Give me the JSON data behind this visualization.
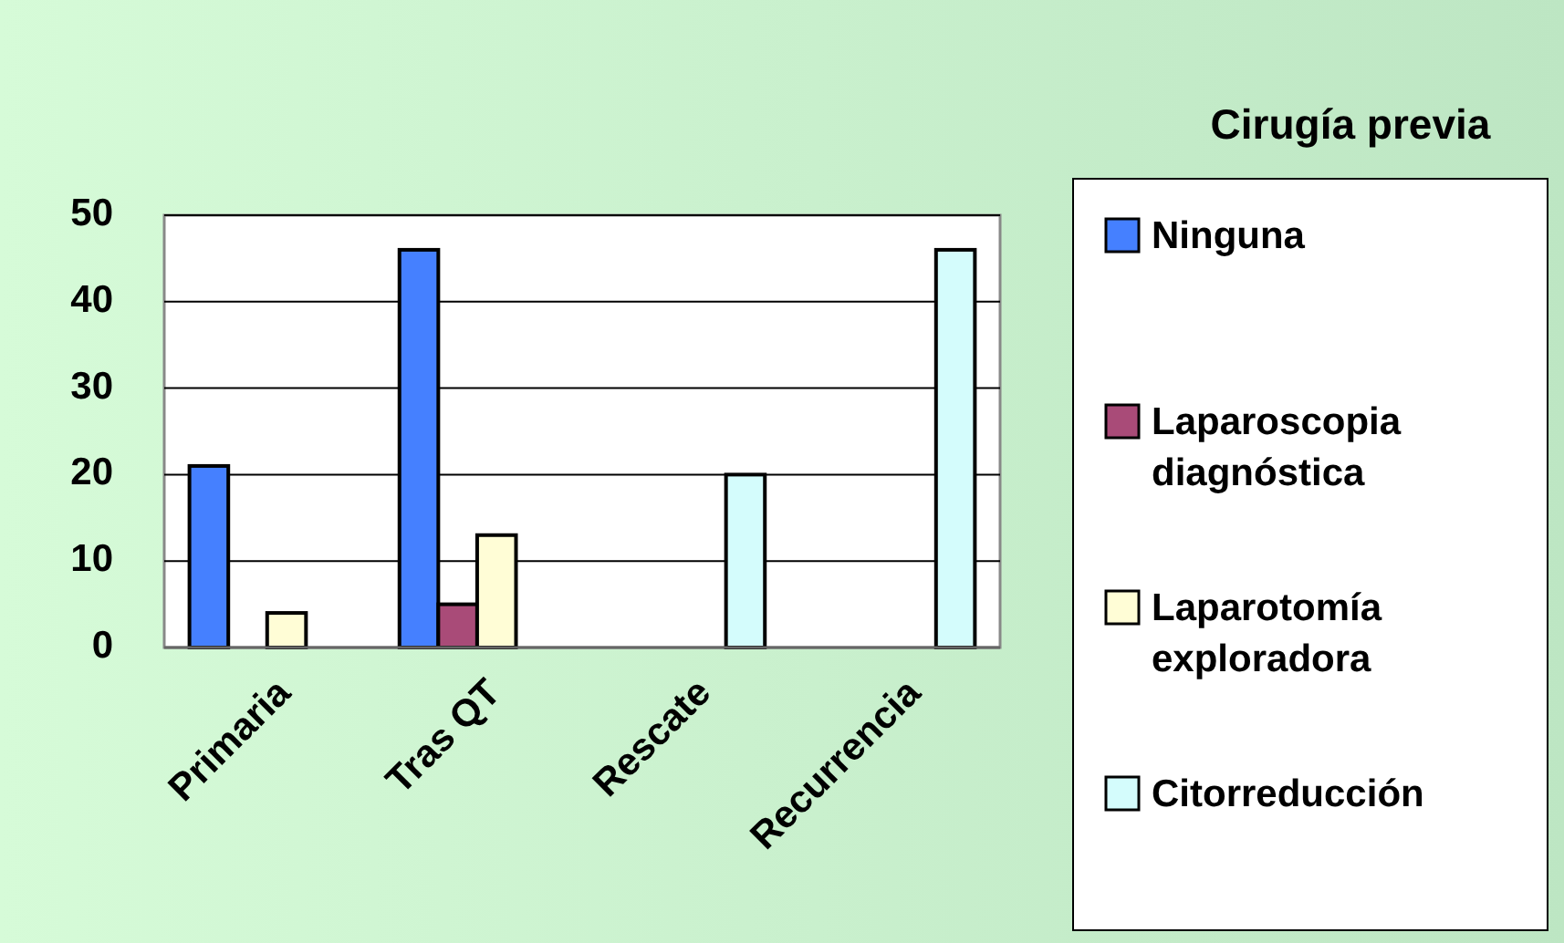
{
  "chart_data": {
    "type": "bar",
    "legend_title": "Cirugía previa",
    "categories": [
      "Primaria",
      "Tras QT",
      "Rescate",
      "Recurrencia"
    ],
    "series": [
      {
        "name": "Ninguna",
        "color": "#4580ff",
        "values": [
          21,
          46,
          0,
          0
        ]
      },
      {
        "name": "Laparoscopia diagnóstica",
        "color": "#a94b78",
        "values": [
          0,
          5,
          0,
          0
        ]
      },
      {
        "name": "Laparotomía exploradora",
        "color": "#fffdd6",
        "values": [
          4,
          13,
          0,
          0
        ]
      },
      {
        "name": "Citorreducción",
        "color": "#d4fcfc",
        "values": [
          0,
          0,
          20,
          46
        ]
      }
    ],
    "ylim": [
      0,
      50
    ],
    "yticks": [
      0,
      10,
      20,
      30,
      40,
      50
    ],
    "grid": "y",
    "legend": "right"
  }
}
